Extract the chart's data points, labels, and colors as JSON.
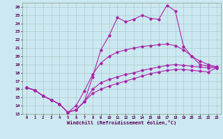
{
  "xlabel": "Windchill (Refroidissement éolien,°C)",
  "bg_color": "#cce8f0",
  "grid_color": "#aacccc",
  "line_color": "#aa22aa",
  "xlim": [
    -0.5,
    23.5
  ],
  "ylim": [
    13,
    26.5
  ],
  "xticks": [
    0,
    1,
    2,
    3,
    4,
    5,
    6,
    7,
    8,
    9,
    10,
    11,
    12,
    13,
    14,
    15,
    16,
    17,
    18,
    19,
    20,
    21,
    22,
    23
  ],
  "yticks": [
    13,
    14,
    15,
    16,
    17,
    18,
    19,
    20,
    21,
    22,
    23,
    24,
    25,
    26
  ],
  "line1_y": [
    16.2,
    15.9,
    15.2,
    14.7,
    14.2,
    13.2,
    13.5,
    14.5,
    17.5,
    20.8,
    22.5,
    24.7,
    24.2,
    24.5,
    25.0,
    24.6,
    24.5,
    26.2,
    25.5,
    21.2,
    20.0,
    19.0,
    18.8,
    18.7
  ],
  "line2_y": [
    16.2,
    15.9,
    15.2,
    14.7,
    14.2,
    13.2,
    14.0,
    15.8,
    17.8,
    19.2,
    20.0,
    20.5,
    20.8,
    21.0,
    21.2,
    21.3,
    21.4,
    21.5,
    21.3,
    20.8,
    20.0,
    19.4,
    19.0,
    18.7
  ],
  "line3_y": [
    16.2,
    15.9,
    15.2,
    14.7,
    14.2,
    13.2,
    13.5,
    14.5,
    16.0,
    16.8,
    17.2,
    17.5,
    17.8,
    18.0,
    18.3,
    18.5,
    18.7,
    18.9,
    19.0,
    18.9,
    18.8,
    18.7,
    18.6,
    18.6
  ],
  "line4_y": [
    16.2,
    15.9,
    15.2,
    14.7,
    14.2,
    13.2,
    13.5,
    14.5,
    15.5,
    16.0,
    16.4,
    16.7,
    17.0,
    17.3,
    17.6,
    17.9,
    18.1,
    18.3,
    18.4,
    18.4,
    18.3,
    18.2,
    18.1,
    18.6
  ]
}
